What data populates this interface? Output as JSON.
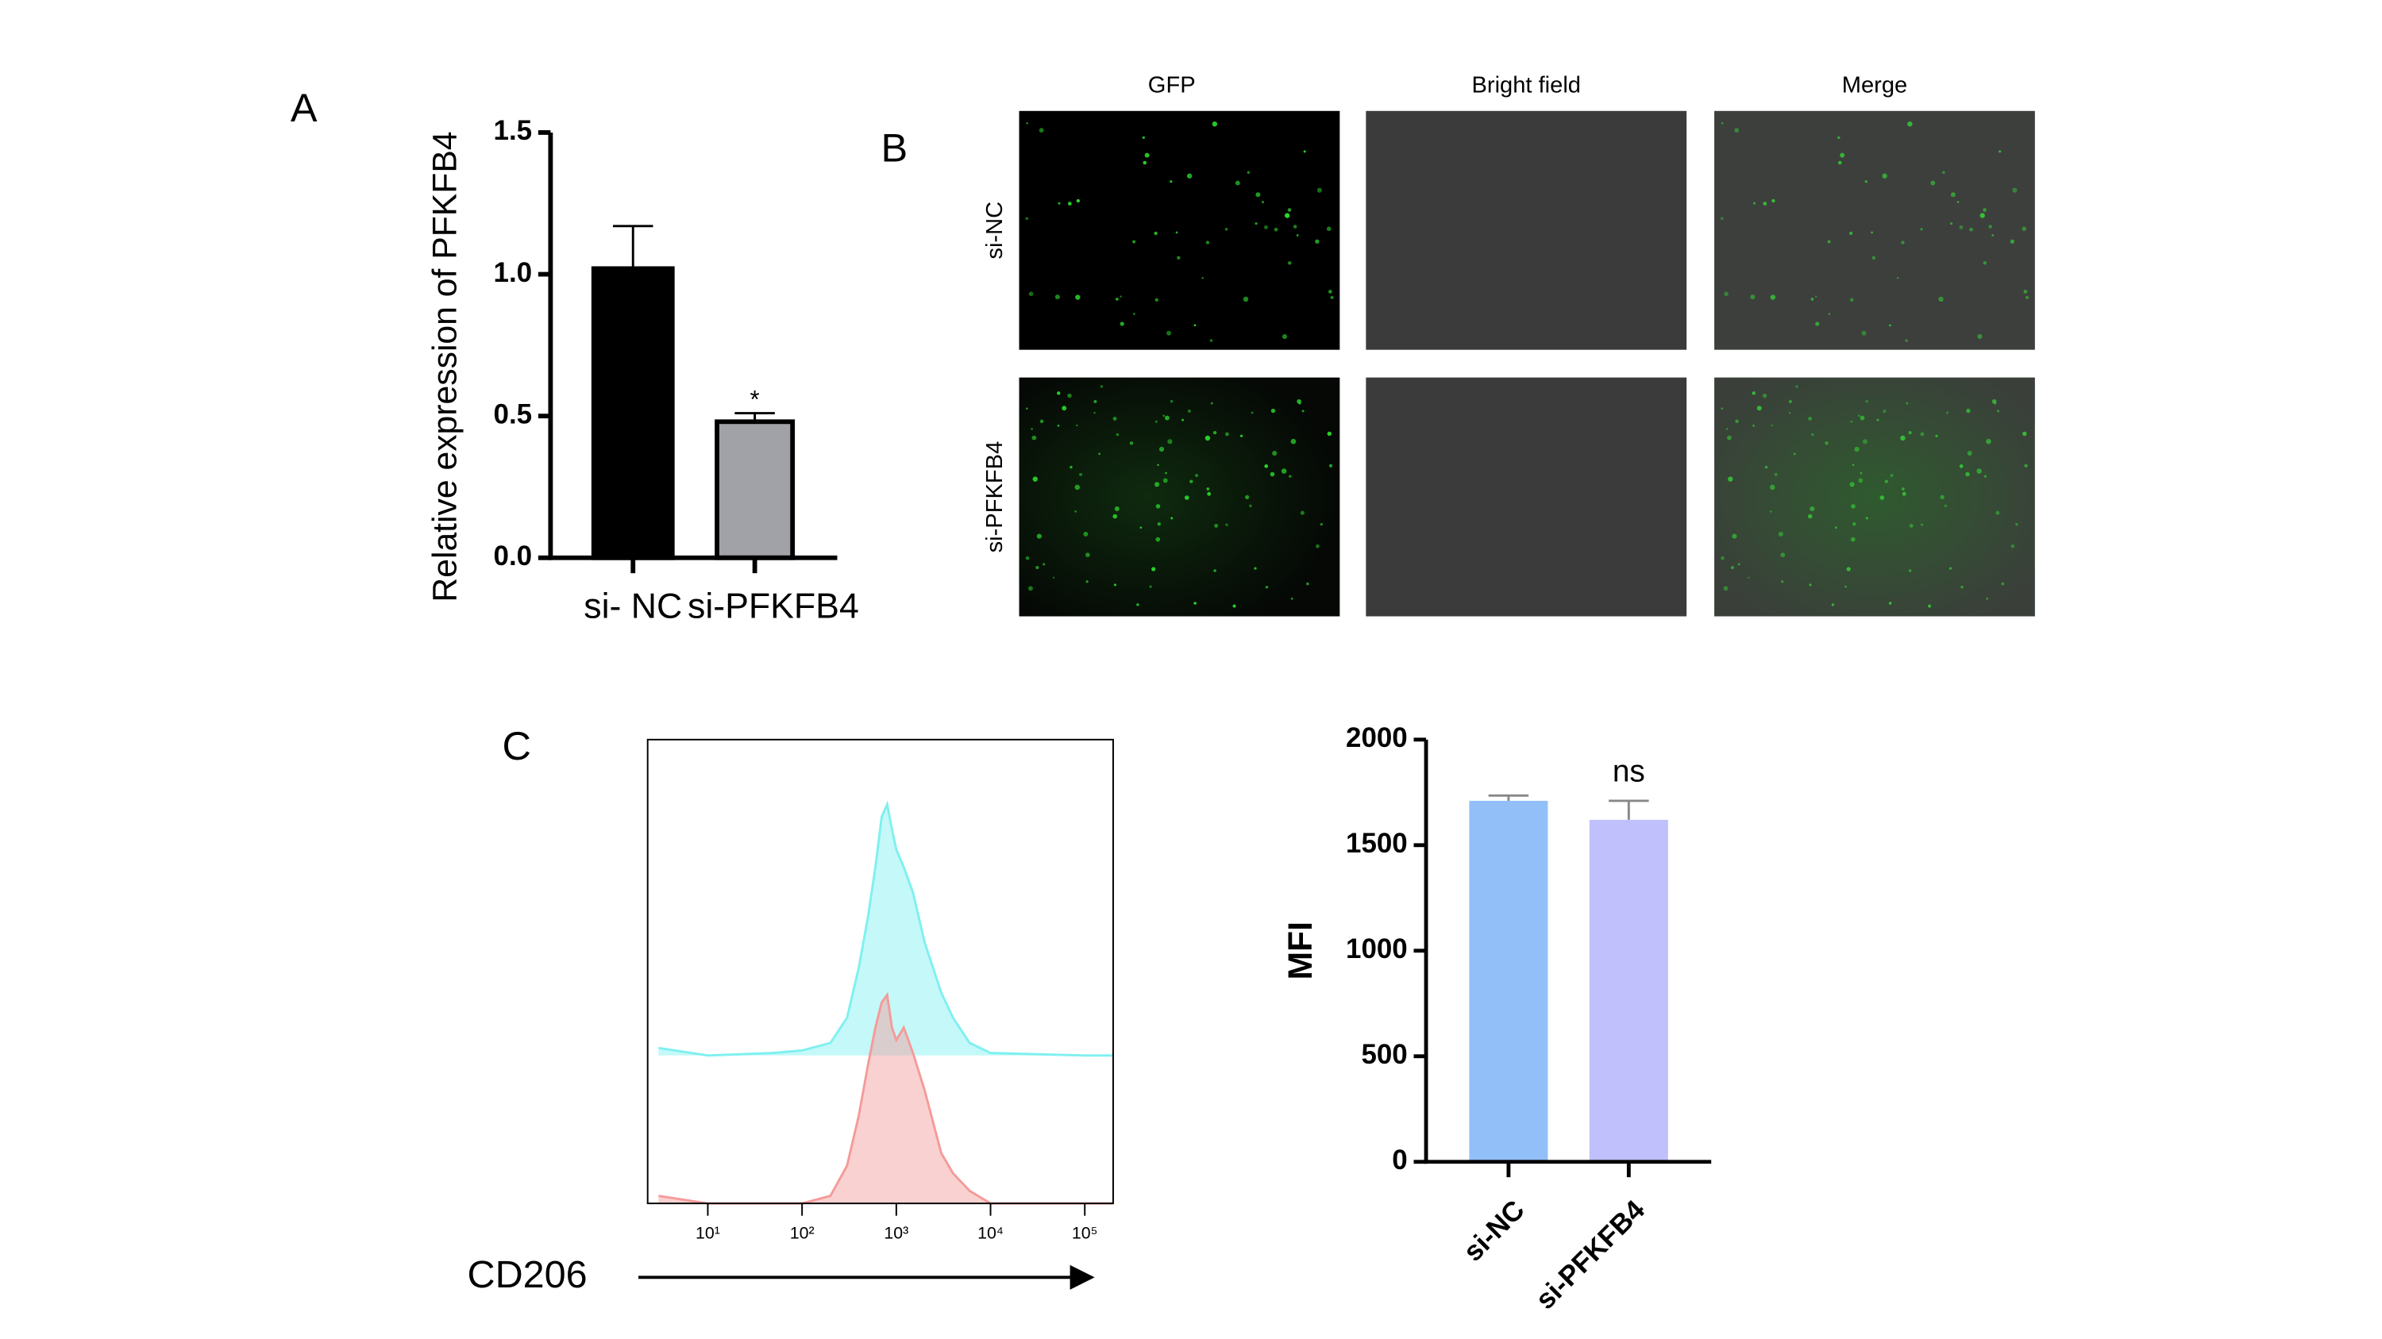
{
  "panels": {
    "a": "A",
    "b": "B",
    "c": "C"
  },
  "images": {
    "columns": [
      "GFP",
      "Bright field",
      "Merge"
    ],
    "rows": [
      "si-NC",
      "si-PFKFB4"
    ]
  },
  "chart_data": [
    {
      "type": "bar",
      "ylabel": "Relative expression of PFKFB4",
      "categories": [
        "si- NC",
        "si-PFKFB4"
      ],
      "values": [
        1.02,
        0.48
      ],
      "errors": [
        0.15,
        0.03
      ],
      "colors": [
        "#000000",
        "#a1a1a8"
      ],
      "ylim": [
        0,
        1.5
      ],
      "yticks": [
        {
          "value": 0,
          "label": "0.0"
        },
        {
          "value": 0.5,
          "label": "0.5"
        },
        {
          "value": 1,
          "label": "1.0"
        },
        1.5
      ],
      "annotations": [
        {
          "text": "*",
          "category": "si-PFKFB4"
        }
      ]
    },
    {
      "type": "density",
      "xlabel": "CD206",
      "xscale": "log",
      "xlim": [
        2.3,
        200000
      ],
      "xticks": [
        {
          "value": 10,
          "label": "10¹"
        },
        {
          "value": 100,
          "label": "10²"
        },
        {
          "value": 1000,
          "label": "10³"
        },
        {
          "value": 10000,
          "label": "10⁴"
        },
        {
          "value": 100000,
          "label": "10⁵"
        }
      ],
      "ylim": [
        0,
        100
      ],
      "series": [
        {
          "color": "#7ff0f0",
          "x": [
            3,
            10,
            50,
            100,
            200,
            300,
            400,
            500,
            600,
            700,
            800,
            900,
            1000,
            1200,
            1500,
            2000,
            3000,
            4000,
            6000,
            10000,
            100000,
            200000
          ],
          "values": [
            3,
            0,
            1,
            2,
            5,
            15,
            35,
            55,
            75,
            95,
            100,
            90,
            82,
            75,
            65,
            45,
            25,
            15,
            5,
            1,
            0,
            0
          ]
        },
        {
          "color": "#f59a9a",
          "x": [
            3,
            10,
            50,
            100,
            200,
            300,
            400,
            500,
            600,
            700,
            800,
            900,
            1000,
            1200,
            1500,
            2000,
            3000,
            4000,
            6000,
            10000,
            100000,
            200000
          ],
          "values": [
            3,
            0,
            0,
            0,
            3,
            15,
            35,
            55,
            70,
            80,
            83,
            70,
            65,
            70,
            60,
            45,
            20,
            12,
            5,
            0,
            0,
            0
          ]
        }
      ]
    },
    {
      "type": "bar",
      "ylabel": "MFI",
      "categories": [
        "si-NC",
        "si-PFKFB4"
      ],
      "values": [
        1710,
        1620
      ],
      "errors": [
        25,
        90
      ],
      "colors": [
        "#92bff8",
        "#c0c0fc"
      ],
      "ylim": [
        0,
        2000
      ],
      "yticks": [
        0,
        500,
        1000,
        1500,
        2000
      ],
      "annotations": [
        {
          "text": "ns",
          "category": "si-PFKFB4"
        }
      ]
    }
  ]
}
